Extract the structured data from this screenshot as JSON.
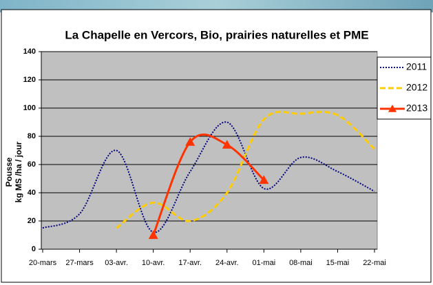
{
  "chart_data": {
    "type": "line",
    "title": "La Chapelle en Vercors, Bio, prairies naturelles et PME",
    "ylabel": [
      "Pousse",
      "kg MS /ha / jour"
    ],
    "categories": [
      "20-mars",
      "27-mars",
      "03-avr.",
      "10-avr.",
      "17-avr.",
      "24-avr.",
      "01-mai",
      "08-mai",
      "15-mai",
      "22-mai"
    ],
    "series": [
      {
        "name": "2011",
        "color": "#000080",
        "style": "dotted",
        "values": [
          15,
          25,
          70,
          12,
          55,
          90,
          43,
          65,
          55,
          41
        ]
      },
      {
        "name": "2012",
        "color": "#ffcc00",
        "style": "dashed",
        "values": [
          null,
          null,
          15,
          33,
          20,
          40,
          92,
          96,
          95,
          71
        ]
      },
      {
        "name": "2013",
        "color": "#ff3300",
        "style": "solid",
        "marker": "triangle",
        "values": [
          null,
          null,
          null,
          10,
          76,
          74,
          49,
          null,
          null,
          null
        ]
      }
    ],
    "ylim": [
      0,
      140
    ],
    "yticks": [
      0,
      20,
      40,
      60,
      80,
      100,
      120,
      140
    ],
    "grid": true,
    "smooth": true,
    "legend": "right"
  }
}
